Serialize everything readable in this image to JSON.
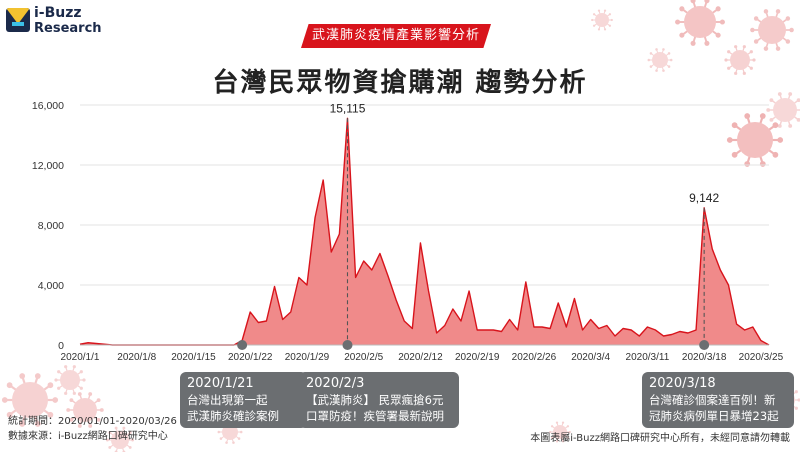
{
  "logo": {
    "line1": "i-Buzz",
    "line2": "Research"
  },
  "banner": "武漢肺炎疫情產業影響分析",
  "title": "台灣民眾物資搶購潮  趨勢分析",
  "callouts": [
    {
      "date": "2020/1/21",
      "lines": [
        "台灣出現第一起",
        "武漢肺炎確診案例"
      ]
    },
    {
      "date": "2020/2/3",
      "lines": [
        "【武漢肺炎】 民眾瘋搶6元",
        "口罩防疫！疾管署最新說明"
      ]
    },
    {
      "date": "2020/3/18",
      "lines": [
        "台灣確診個案達百例！新",
        "冠肺炎病例單日暴增23起"
      ]
    }
  ],
  "footer": {
    "period": "統計期間：2020/01/01-2020/03/26",
    "source": "數據來源：i-Buzz網路口碑研究中心",
    "copyright": "本圖表屬i-Buzz網路口碑研究中心所有，未經同意請勿轉載"
  },
  "chart_data": {
    "type": "area",
    "title": "台灣民眾物資搶購潮  趨勢分析",
    "x_start": "2020/1/1",
    "x_ticks": [
      "2020/1/1",
      "2020/1/8",
      "2020/1/15",
      "2020/1/22",
      "2020/1/29",
      "2020/2/5",
      "2020/2/12",
      "2020/2/19",
      "2020/2/26",
      "2020/3/4",
      "2020/3/11",
      "2020/3/18",
      "2020/3/25"
    ],
    "y_ticks": [
      "0",
      "4,000",
      "8,000",
      "12,000",
      "16,000"
    ],
    "ylim": [
      0,
      16000
    ],
    "grid": true,
    "series": [
      {
        "values": [
          50,
          150,
          100,
          50,
          0,
          0,
          0,
          0,
          0,
          0,
          0,
          0,
          0,
          0,
          0,
          0,
          0,
          0,
          0,
          0,
          300,
          2200,
          1500,
          1600,
          3900,
          1700,
          2200,
          4500,
          4000,
          8500,
          11000,
          6200,
          7400,
          15115,
          4500,
          5600,
          5000,
          6100,
          4600,
          3000,
          1600,
          1100,
          6800,
          3600,
          800,
          1300,
          2400,
          1600,
          3600,
          1000,
          1000,
          1000,
          900,
          1700,
          1000,
          4200,
          1200,
          1200,
          1100,
          2800,
          1200,
          3100,
          1000,
          1700,
          1100,
          1300,
          600,
          1100,
          1000,
          600,
          1200,
          1000,
          600,
          700,
          900,
          800,
          1000,
          9142,
          6400,
          5000,
          4000,
          1400,
          1000,
          1200,
          300,
          0
        ]
      }
    ],
    "annotations": [
      {
        "date": "2020/2/3",
        "label": "15,115"
      },
      {
        "date": "2020/3/18",
        "label": "9,142"
      }
    ],
    "colors": {
      "fill": "#f08a8a",
      "line": "#d8141c",
      "marker": "#6b6e71"
    }
  }
}
